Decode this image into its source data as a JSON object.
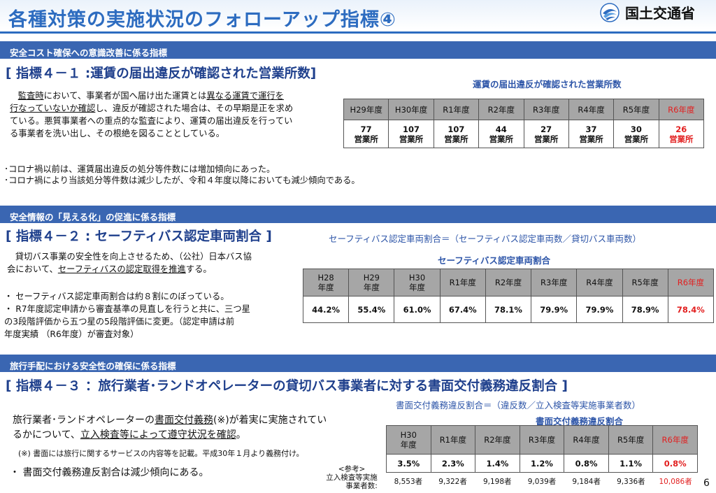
{
  "title": "各種対策の実施状況のフォローアップ指標④",
  "logo_text": "国土交通省",
  "page_number": "6",
  "colors": {
    "accent": "#2d6cc0",
    "section_bar": "#3a66b2",
    "heading": "#1e3f8c",
    "highlight": "#e21f1f",
    "table_header": "#a6a6a6"
  },
  "sec1": {
    "bar": "安全コスト確保への意識改善に係る指標",
    "heading": "[ 指標４－１ :運賃の届出違反が確認された営業所数]",
    "table_title": "運賃の届出違反が確認された営業所数",
    "p_l1a": "監査時",
    "p_l1b": "において、事業者が国へ届け出た運賃とは",
    "p_l1c": "異なる運賃で運行を",
    "p_l2a": "行なっていないか確認",
    "p_l2b": "し、違反が確認された場合は、その早期是正を求め",
    "p_l3": "ている。悪質事業者への重点的な監査により、運賃の届出違反を行ってい",
    "p_l4": "る事業者を洗い出し、その根絶を図ることとしている。",
    "note1": "･コロナ禍以前は、運賃届出違反の処分等件数には増加傾向にあった。",
    "note2": "･コロナ禍により当該処分等件数は減少したが、令和４年度以降においても減少傾向である。",
    "unit": "営業所",
    "headers": [
      "H29年度",
      "H30年度",
      "R1年度",
      "R2年度",
      "R3年度",
      "R4年度",
      "R5年度",
      "R6年度"
    ],
    "values": [
      "77",
      "107",
      "107",
      "44",
      "27",
      "37",
      "30",
      "26"
    ]
  },
  "sec2": {
    "bar": "安全情報の「見える化」の促進に係る指標",
    "heading": "[ 指標４－２ : セーフティバス認定車両割合 ]",
    "formula": "セーフティバス認定車両割合＝（セーフティバス認定車両数／貸切バス車両数）",
    "table_title": "セーフティバス認定車両割合",
    "p_l1": "貸切バス事業の安全性を向上させるため、（公社）日本バス協",
    "p_l2a": "会において、",
    "p_l2b": "セーフティバスの認定取得を推進",
    "p_l2c": "する。",
    "b1": "・ セーフティバス認定車両割合は約８割にのぼっている。",
    "b2": "・ R7年度認定申請から審査基準の見直しを行うと共に、三つ星",
    "b3": "の3段階評価から五つ星の5段階評価に変更。（認定申請は前",
    "b4": "年度実績 （R6年度）が審査対象）",
    "headers": [
      "H28\n年度",
      "H29\n年度",
      "H30\n年度",
      "R1年度",
      "R2年度",
      "R3年度",
      "R4年度",
      "R5年度",
      "R6年度"
    ],
    "values": [
      "44.2%",
      "55.4%",
      "61.0%",
      "67.4%",
      "78.1%",
      "79.9%",
      "79.9%",
      "78.9%",
      "78.4%"
    ]
  },
  "sec3": {
    "bar": "旅行手配における安全性の確保に係る指標",
    "heading": "[ 指標４－３ ：旅行業者･ランドオペレーターの貸切バス事業者に対する書面交付義務違反割合 ]",
    "formula": "書面交付義務違反割合＝（違反数／立入検査等実施事業者数）",
    "table_title": "書面交付義務違反割合",
    "p_l1a": "旅行業者･ランドオペレーターの",
    "p_l1b": "書面交付義務",
    "p_l1c": "(※)が着実に実施されてい",
    "p_l2a": "るかについて、",
    "p_l2b": "立入検査等によって遵守状況を確認",
    "p_l2c": "。",
    "note": "(※) 書面には旅行に関するサービスの内容等を記載。平成30年１月より義務付け。",
    "bullet": "・ 書面交付義務違反割合は減少傾向にある。",
    "ref_label": "<参考>",
    "ref_line1": "立入検査等実施",
    "ref_line2": "事業者数:",
    "headers": [
      "H30\n年度",
      "R1年度",
      "R2年度",
      "R3年度",
      "R4年度",
      "R5年度",
      "R6年度"
    ],
    "values": [
      "3.5%",
      "2.3%",
      "1.4%",
      "1.2%",
      "0.8%",
      "1.1%",
      "0.8%"
    ],
    "counts": [
      "8,553者",
      "9,322者",
      "9,198者",
      "9,039者",
      "9,184者",
      "9,336者",
      "10,086者"
    ]
  }
}
